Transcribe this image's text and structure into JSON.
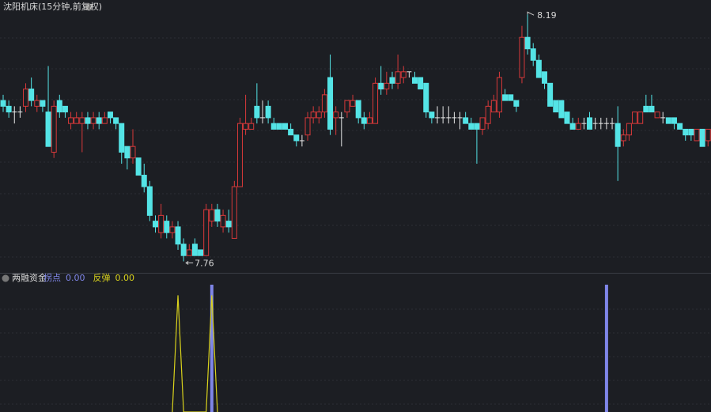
{
  "chart_data": [
    {
      "type": "candlestick",
      "title": "沈阳机床(15分钟,前复权)",
      "up_color": "#d8393a",
      "down_color": "#54e4e6",
      "flat_color": "#e8e8e8",
      "ylim": [
        7.74,
        8.215
      ],
      "candles": [
        [
          8.04,
          8.05,
          8.02,
          8.03
        ],
        [
          8.03,
          8.04,
          8.01,
          8.02
        ],
        [
          8.02,
          8.03,
          8.0,
          8.02
        ],
        [
          8.02,
          8.03,
          8.01,
          8.02
        ],
        [
          8.03,
          8.07,
          8.02,
          8.06
        ],
        [
          8.06,
          8.08,
          8.03,
          8.04
        ],
        [
          8.03,
          8.05,
          8.02,
          8.04
        ],
        [
          8.04,
          8.04,
          8.02,
          8.03
        ],
        [
          8.02,
          8.1,
          7.96,
          7.96
        ],
        [
          7.95,
          8.04,
          7.94,
          8.03
        ],
        [
          8.04,
          8.05,
          8.01,
          8.02
        ],
        [
          8.03,
          8.03,
          8.01,
          8.02
        ],
        [
          8.0,
          8.02,
          7.99,
          8.01
        ],
        [
          8.0,
          8.02,
          8.0,
          8.01
        ],
        [
          8.0,
          8.02,
          7.95,
          8.01
        ],
        [
          8.01,
          8.02,
          7.99,
          8.0
        ],
        [
          8.0,
          8.02,
          7.99,
          8.01
        ],
        [
          8.01,
          8.02,
          7.99,
          8.0
        ],
        [
          8.0,
          8.02,
          8.0,
          8.01
        ],
        [
          8.02,
          8.02,
          8.0,
          8.01
        ],
        [
          8.01,
          8.01,
          7.99,
          8.0
        ],
        [
          8.0,
          8.0,
          7.93,
          7.95
        ],
        [
          7.96,
          7.96,
          7.92,
          7.94
        ],
        [
          7.94,
          7.99,
          7.93,
          7.96
        ],
        [
          7.94,
          7.94,
          7.91,
          7.91
        ],
        [
          7.91,
          7.93,
          7.88,
          7.89
        ],
        [
          7.89,
          7.9,
          7.83,
          7.84
        ],
        [
          7.83,
          7.84,
          7.81,
          7.82
        ],
        [
          7.81,
          7.86,
          7.8,
          7.84
        ],
        [
          7.83,
          7.84,
          7.8,
          7.81
        ],
        [
          7.81,
          7.83,
          7.8,
          7.82
        ],
        [
          7.82,
          7.83,
          7.78,
          7.79
        ],
        [
          7.79,
          7.8,
          7.76,
          7.77
        ],
        [
          7.77,
          7.79,
          7.77,
          7.78
        ],
        [
          7.79,
          7.8,
          7.77,
          7.77
        ],
        [
          7.78,
          7.78,
          7.77,
          7.77
        ],
        [
          7.77,
          7.86,
          7.77,
          7.85
        ],
        [
          7.83,
          7.86,
          7.82,
          7.85
        ],
        [
          7.85,
          7.86,
          7.82,
          7.83
        ],
        [
          7.82,
          7.85,
          7.81,
          7.84
        ],
        [
          7.83,
          7.85,
          7.81,
          7.82
        ],
        [
          7.8,
          7.9,
          7.8,
          7.89
        ],
        [
          7.89,
          8.01,
          7.89,
          8.0
        ],
        [
          7.99,
          8.05,
          7.98,
          8.0
        ],
        [
          7.99,
          8.01,
          7.99,
          8.0
        ],
        [
          8.03,
          8.07,
          8.0,
          8.01
        ],
        [
          8.01,
          8.04,
          8.0,
          8.01
        ],
        [
          8.03,
          8.04,
          8.0,
          8.01
        ],
        [
          8.0,
          8.01,
          7.99,
          7.99
        ],
        [
          8.0,
          8.0,
          7.99,
          7.99
        ],
        [
          8.0,
          8.0,
          7.99,
          7.99
        ],
        [
          7.99,
          8.0,
          7.98,
          7.98
        ],
        [
          7.98,
          7.98,
          7.96,
          7.97
        ],
        [
          7.97,
          7.98,
          7.96,
          7.97
        ],
        [
          7.98,
          8.02,
          7.97,
          8.01
        ],
        [
          8.01,
          8.03,
          8.0,
          8.02
        ],
        [
          8.01,
          8.03,
          8.0,
          8.02
        ],
        [
          8.02,
          8.06,
          8.01,
          8.05
        ],
        [
          8.08,
          8.12,
          7.98,
          7.99
        ],
        [
          8.01,
          8.03,
          7.98,
          8.02
        ],
        [
          8.01,
          8.02,
          7.96,
          8.01
        ],
        [
          8.02,
          8.04,
          8.01,
          8.04
        ],
        [
          8.03,
          8.05,
          8.03,
          8.04
        ],
        [
          8.04,
          8.04,
          8.0,
          8.01
        ],
        [
          8.01,
          8.02,
          7.99,
          8.0
        ],
        [
          8.0,
          8.02,
          8.0,
          8.01
        ],
        [
          8.0,
          8.08,
          8.0,
          8.07
        ],
        [
          8.07,
          8.1,
          8.05,
          8.06
        ],
        [
          8.06,
          8.09,
          8.05,
          8.07
        ],
        [
          8.08,
          8.09,
          8.06,
          8.07
        ],
        [
          8.07,
          8.12,
          8.06,
          8.09
        ],
        [
          8.08,
          8.1,
          8.07,
          8.09
        ],
        [
          8.09,
          8.09,
          8.08,
          8.09
        ],
        [
          8.08,
          8.09,
          8.07,
          8.07
        ],
        [
          8.08,
          8.08,
          8.06,
          8.06
        ],
        [
          8.07,
          8.07,
          8.01,
          8.02
        ],
        [
          8.02,
          8.02,
          8.0,
          8.01
        ],
        [
          8.01,
          8.03,
          8.0,
          8.01
        ],
        [
          8.01,
          8.03,
          8.0,
          8.01
        ],
        [
          8.01,
          8.03,
          8.0,
          8.01
        ],
        [
          8.01,
          8.02,
          8.0,
          8.01
        ],
        [
          8.01,
          8.02,
          7.99,
          8.01
        ],
        [
          8.01,
          8.02,
          8.0,
          8.0
        ],
        [
          8.0,
          8.01,
          7.99,
          7.99
        ],
        [
          8.0,
          8.0,
          7.93,
          7.99
        ],
        [
          7.99,
          8.01,
          7.98,
          8.01
        ],
        [
          8.0,
          8.04,
          7.99,
          8.03
        ],
        [
          8.02,
          8.05,
          8.02,
          8.04
        ],
        [
          8.02,
          8.09,
          8.01,
          8.08
        ],
        [
          8.05,
          8.06,
          8.04,
          8.04
        ],
        [
          8.05,
          8.05,
          8.04,
          8.04
        ],
        [
          8.04,
          8.04,
          8.02,
          8.03
        ],
        [
          8.08,
          8.17,
          8.07,
          8.15
        ],
        [
          8.15,
          8.19,
          8.12,
          8.13
        ],
        [
          8.13,
          8.14,
          8.1,
          8.11
        ],
        [
          8.11,
          8.12,
          8.08,
          8.08
        ],
        [
          8.09,
          8.09,
          8.06,
          8.07
        ],
        [
          8.07,
          8.07,
          8.03,
          8.03
        ],
        [
          8.04,
          8.04,
          8.02,
          8.02
        ],
        [
          8.04,
          8.04,
          8.01,
          8.01
        ],
        [
          8.02,
          8.02,
          8.0,
          8.0
        ],
        [
          8.0,
          8.01,
          7.99,
          7.99
        ],
        [
          7.99,
          8.01,
          7.99,
          8.0
        ],
        [
          8.0,
          8.01,
          7.99,
          8.0
        ],
        [
          8.01,
          8.02,
          7.99,
          7.99
        ],
        [
          8.0,
          8.01,
          7.99,
          8.0
        ],
        [
          8.0,
          8.01,
          7.99,
          8.0
        ],
        [
          8.0,
          8.01,
          7.99,
          8.0
        ],
        [
          8.0,
          8.01,
          7.99,
          8.0
        ],
        [
          8.0,
          8.03,
          7.9,
          7.96
        ],
        [
          7.97,
          7.99,
          7.96,
          7.98
        ],
        [
          7.98,
          8.0,
          7.97,
          8.0
        ],
        [
          8.0,
          8.02,
          8.0,
          8.02
        ],
        [
          8.0,
          8.02,
          8.0,
          8.02
        ],
        [
          8.03,
          8.05,
          8.02,
          8.02
        ],
        [
          8.03,
          8.05,
          8.02,
          8.02
        ],
        [
          8.01,
          8.02,
          8.01,
          8.02
        ],
        [
          8.01,
          8.02,
          8.0,
          8.01
        ],
        [
          8.01,
          8.01,
          8.0,
          8.0
        ],
        [
          8.01,
          8.01,
          7.99,
          8.0
        ],
        [
          8.0,
          8.0,
          7.99,
          7.99
        ],
        [
          7.99,
          7.99,
          7.97,
          7.98
        ],
        [
          7.99,
          7.99,
          7.97,
          7.98
        ],
        [
          7.97,
          7.99,
          7.97,
          7.99
        ],
        [
          7.99,
          7.99,
          7.96,
          7.96
        ],
        [
          7.97,
          7.99,
          7.96,
          7.99
        ]
      ]
    },
    {
      "type": "indicator",
      "title": "两融资金",
      "ylim": [
        0,
        1.2
      ],
      "series": [
        {
          "name": "拐点",
          "legend_value": "0.00",
          "color": "#7f86e8",
          "style": "bar",
          "x": [
            37,
            107
          ],
          "values": [
            1.2,
            1.2
          ]
        },
        {
          "name": "反弹",
          "legend_value": "0.00",
          "color": "#d9d21c",
          "style": "line",
          "x": [
            30,
            31,
            32,
            36,
            37,
            38
          ],
          "values": [
            0,
            1.1,
            0,
            0,
            1.1,
            0
          ]
        }
      ]
    }
  ]
}
